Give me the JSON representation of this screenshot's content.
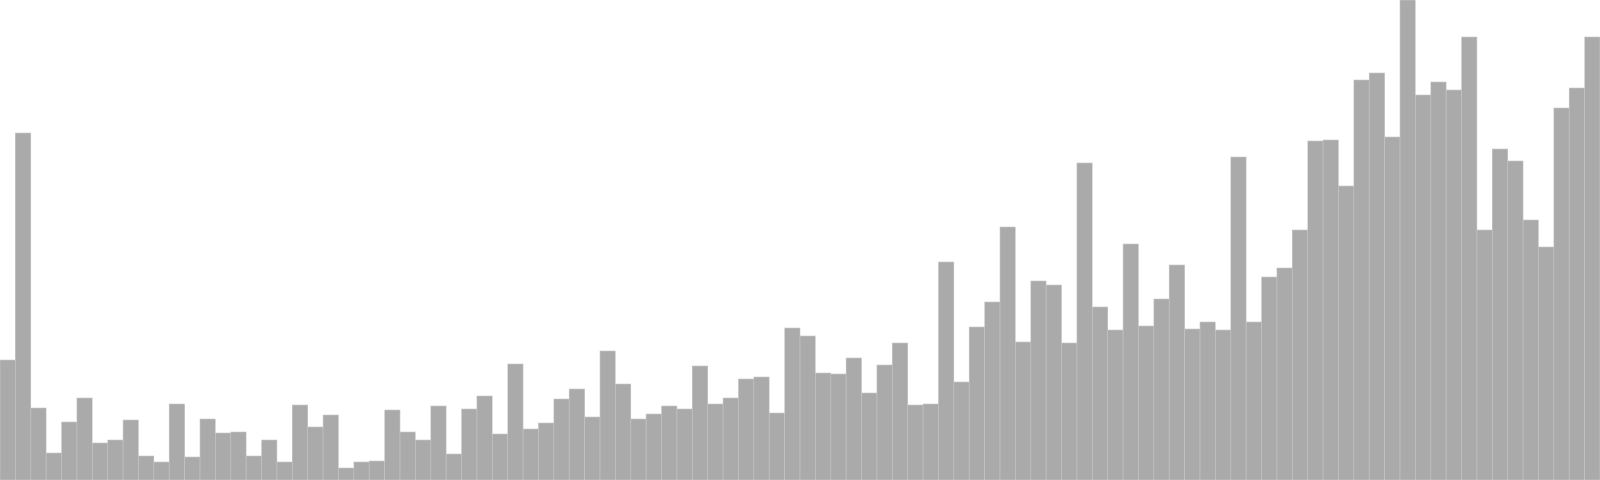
{
  "colors": {
    "bar_fill": "#aaaaaa",
    "bar_edge": "#c8c8c8",
    "background": "#ffffff"
  },
  "chart_data": {
    "type": "bar",
    "title": "",
    "xlabel": "",
    "ylabel": "",
    "grid": false,
    "axes_visible": false,
    "legend": "none",
    "ylim": [
      0,
      480
    ],
    "values": [
      120,
      347,
      72,
      27,
      58,
      82,
      37,
      40,
      60,
      24,
      18,
      76,
      23,
      61,
      47,
      48,
      24,
      40,
      18,
      75,
      53,
      65,
      12,
      18,
      19,
      70,
      48,
      40,
      74,
      26,
      71,
      84,
      46,
      116,
      51,
      57,
      81,
      91,
      63,
      129,
      96,
      61,
      66,
      74,
      71,
      114,
      76,
      82,
      101,
      103,
      67,
      152,
      144,
      107,
      106,
      122,
      87,
      115,
      137,
      75,
      76,
      218,
      98,
      153,
      178,
      253,
      138,
      199,
      195,
      137,
      317,
      173,
      150,
      236,
      154,
      181,
      215,
      151,
      158,
      150,
      323,
      158,
      203,
      212,
      250,
      339,
      340,
      294,
      400,
      407,
      343,
      480,
      385,
      398,
      390,
      443,
      250,
      331,
      319,
      260,
      233,
      372,
      392,
      443
    ]
  }
}
